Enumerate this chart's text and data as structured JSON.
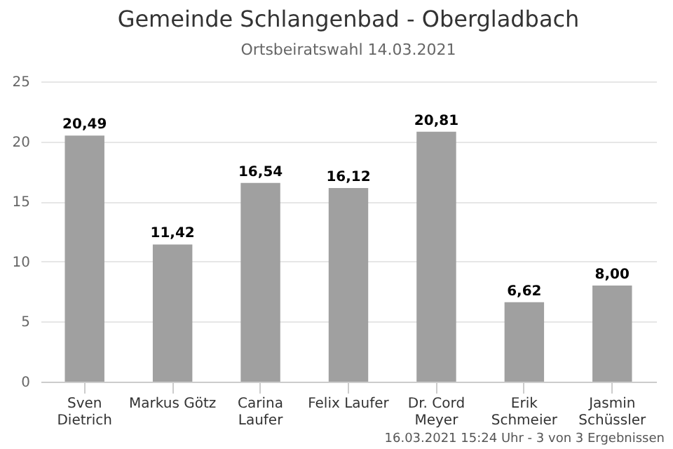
{
  "chart_data": {
    "type": "bar",
    "title": "Gemeinde Schlangenbad - Obergladbach",
    "subtitle": "Ortsbeiratswahl 14.03.2021",
    "categories": [
      "Sven Dietrich",
      "Markus Götz",
      "Carina Laufer",
      "Felix Laufer",
      "Dr. Cord Meyer",
      "Erik Schmeier",
      "Jasmin Schüssler"
    ],
    "values": [
      20.49,
      11.42,
      16.54,
      16.12,
      20.81,
      6.62,
      8.0
    ],
    "value_labels": [
      "20,49",
      "11,42",
      "16,54",
      "16,12",
      "20,81",
      "6,62",
      "8,00"
    ],
    "color": "#a0a0a0",
    "ylim": [
      0,
      25
    ],
    "yticks": [
      0,
      5,
      10,
      15,
      20,
      25
    ],
    "grid": "y",
    "annotations": [
      "16.03.2021 15:24 Uhr - 3 von 3 Ergebnissen"
    ]
  }
}
